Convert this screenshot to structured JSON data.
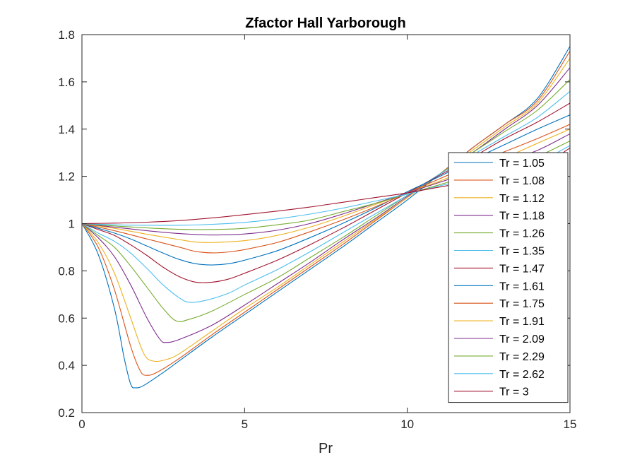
{
  "chart_data": {
    "type": "line",
    "title": "Zfactor Hall Yarborough",
    "xlabel": "Pr",
    "ylabel": "",
    "xlim": [
      0,
      15
    ],
    "ylim": [
      0.2,
      1.8
    ],
    "xticks": [
      "0",
      "5",
      "10",
      "15"
    ],
    "yticks": [
      "0.2",
      "0.4",
      "0.6",
      "0.8",
      "1",
      "1.2",
      "1.4",
      "1.6",
      "1.8"
    ],
    "grid": false,
    "legend_position": "right",
    "series": [
      {
        "name": "Tr = 1.05",
        "color": "#0072BD",
        "points": [
          [
            0,
            1
          ],
          [
            0.5,
            0.87
          ],
          [
            1,
            0.64
          ],
          [
            1.3,
            0.43
          ],
          [
            1.5,
            0.32
          ],
          [
            1.65,
            0.305
          ],
          [
            1.9,
            0.315
          ],
          [
            2.5,
            0.37
          ],
          [
            3,
            0.42
          ],
          [
            4,
            0.52
          ],
          [
            5,
            0.615
          ],
          [
            6,
            0.71
          ],
          [
            7,
            0.805
          ],
          [
            8,
            0.9
          ],
          [
            9,
            1
          ],
          [
            10,
            1.1
          ],
          [
            11,
            1.21
          ],
          [
            12,
            1.32
          ],
          [
            13,
            1.42
          ],
          [
            14,
            1.53
          ],
          [
            15,
            1.75
          ]
        ]
      },
      {
        "name": "Tr = 1.08",
        "color": "#D95319",
        "points": [
          [
            0,
            1
          ],
          [
            0.5,
            0.9
          ],
          [
            1,
            0.72
          ],
          [
            1.5,
            0.48
          ],
          [
            1.8,
            0.375
          ],
          [
            2,
            0.358
          ],
          [
            2.3,
            0.37
          ],
          [
            3,
            0.43
          ],
          [
            4,
            0.53
          ],
          [
            5,
            0.625
          ],
          [
            6,
            0.72
          ],
          [
            7,
            0.815
          ],
          [
            8,
            0.91
          ],
          [
            9,
            1.01
          ],
          [
            10,
            1.11
          ],
          [
            11,
            1.21
          ],
          [
            12,
            1.32
          ],
          [
            13,
            1.42
          ],
          [
            14,
            1.52
          ],
          [
            15,
            1.73
          ]
        ]
      },
      {
        "name": "Tr = 1.12",
        "color": "#EDB120",
        "points": [
          [
            0,
            1
          ],
          [
            0.5,
            0.92
          ],
          [
            1,
            0.79
          ],
          [
            1.5,
            0.6
          ],
          [
            1.9,
            0.45
          ],
          [
            2.2,
            0.418
          ],
          [
            2.6,
            0.425
          ],
          [
            3,
            0.45
          ],
          [
            4,
            0.545
          ],
          [
            5,
            0.64
          ],
          [
            6,
            0.73
          ],
          [
            7,
            0.825
          ],
          [
            8,
            0.92
          ],
          [
            9,
            1.015
          ],
          [
            10,
            1.11
          ],
          [
            11,
            1.21
          ],
          [
            12,
            1.31
          ],
          [
            13,
            1.41
          ],
          [
            14,
            1.51
          ],
          [
            15,
            1.7
          ]
        ]
      },
      {
        "name": "Tr = 1.18",
        "color": "#7E2F8E",
        "points": [
          [
            0,
            1
          ],
          [
            0.5,
            0.94
          ],
          [
            1,
            0.86
          ],
          [
            1.5,
            0.74
          ],
          [
            2,
            0.6
          ],
          [
            2.4,
            0.51
          ],
          [
            2.6,
            0.497
          ],
          [
            3,
            0.51
          ],
          [
            4,
            0.57
          ],
          [
            5,
            0.655
          ],
          [
            6,
            0.745
          ],
          [
            7,
            0.835
          ],
          [
            8,
            0.93
          ],
          [
            9,
            1.02
          ],
          [
            10,
            1.115
          ],
          [
            11,
            1.21
          ],
          [
            12,
            1.3
          ],
          [
            13,
            1.4
          ],
          [
            14,
            1.5
          ],
          [
            15,
            1.66
          ]
        ]
      },
      {
        "name": "Tr = 1.26",
        "color": "#77AC30",
        "points": [
          [
            0,
            1
          ],
          [
            0.5,
            0.95
          ],
          [
            1,
            0.9
          ],
          [
            1.5,
            0.82
          ],
          [
            2,
            0.73
          ],
          [
            2.5,
            0.64
          ],
          [
            2.9,
            0.588
          ],
          [
            3.3,
            0.595
          ],
          [
            4,
            0.63
          ],
          [
            5,
            0.7
          ],
          [
            6,
            0.77
          ],
          [
            7,
            0.855
          ],
          [
            8,
            0.94
          ],
          [
            9,
            1.03
          ],
          [
            10,
            1.12
          ],
          [
            11,
            1.21
          ],
          [
            12,
            1.3
          ],
          [
            13,
            1.39
          ],
          [
            14,
            1.48
          ],
          [
            15,
            1.61
          ]
        ]
      },
      {
        "name": "Tr = 1.35",
        "color": "#4DBEEE",
        "points": [
          [
            0,
            1
          ],
          [
            0.5,
            0.96
          ],
          [
            1,
            0.925
          ],
          [
            1.5,
            0.875
          ],
          [
            2,
            0.81
          ],
          [
            2.5,
            0.74
          ],
          [
            3,
            0.685
          ],
          [
            3.3,
            0.667
          ],
          [
            3.8,
            0.675
          ],
          [
            4.5,
            0.705
          ],
          [
            5,
            0.74
          ],
          [
            6,
            0.805
          ],
          [
            7,
            0.88
          ],
          [
            8,
            0.96
          ],
          [
            9,
            1.04
          ],
          [
            10,
            1.12
          ],
          [
            11,
            1.21
          ],
          [
            12,
            1.29
          ],
          [
            13,
            1.37
          ],
          [
            14,
            1.45
          ],
          [
            15,
            1.56
          ]
        ]
      },
      {
        "name": "Tr = 1.47",
        "color": "#A2142F",
        "points": [
          [
            0,
            1
          ],
          [
            0.5,
            0.975
          ],
          [
            1,
            0.95
          ],
          [
            1.5,
            0.91
          ],
          [
            2,
            0.865
          ],
          [
            2.5,
            0.815
          ],
          [
            3,
            0.775
          ],
          [
            3.5,
            0.752
          ],
          [
            4,
            0.752
          ],
          [
            4.5,
            0.765
          ],
          [
            5,
            0.79
          ],
          [
            6,
            0.845
          ],
          [
            7,
            0.91
          ],
          [
            8,
            0.98
          ],
          [
            9,
            1.055
          ],
          [
            10,
            1.13
          ],
          [
            11,
            1.205
          ],
          [
            12,
            1.28
          ],
          [
            13,
            1.36
          ],
          [
            14,
            1.43
          ],
          [
            15,
            1.51
          ]
        ]
      },
      {
        "name": "Tr = 1.61",
        "color": "#0072BD",
        "points": [
          [
            0,
            1
          ],
          [
            0.5,
            0.98
          ],
          [
            1,
            0.96
          ],
          [
            1.5,
            0.935
          ],
          [
            2,
            0.905
          ],
          [
            2.5,
            0.875
          ],
          [
            3,
            0.848
          ],
          [
            3.5,
            0.83
          ],
          [
            4,
            0.825
          ],
          [
            4.5,
            0.83
          ],
          [
            5,
            0.845
          ],
          [
            6,
            0.885
          ],
          [
            7,
            0.94
          ],
          [
            8,
            1
          ],
          [
            9,
            1.065
          ],
          [
            10,
            1.135
          ],
          [
            11,
            1.2
          ],
          [
            12,
            1.27
          ],
          [
            13,
            1.335
          ],
          [
            14,
            1.4
          ],
          [
            15,
            1.46
          ]
        ]
      },
      {
        "name": "Tr = 1.75",
        "color": "#D95319",
        "points": [
          [
            0,
            1
          ],
          [
            1,
            0.97
          ],
          [
            2,
            0.935
          ],
          [
            3,
            0.9
          ],
          [
            3.5,
            0.882
          ],
          [
            4,
            0.876
          ],
          [
            4.5,
            0.88
          ],
          [
            5,
            0.89
          ],
          [
            6,
            0.92
          ],
          [
            7,
            0.965
          ],
          [
            8,
            1.015
          ],
          [
            9,
            1.07
          ],
          [
            10,
            1.13
          ],
          [
            11,
            1.19
          ],
          [
            12,
            1.25
          ],
          [
            13,
            1.305
          ],
          [
            14,
            1.36
          ],
          [
            15,
            1.42
          ]
        ]
      },
      {
        "name": "Tr = 1.91",
        "color": "#EDB120",
        "points": [
          [
            0,
            1
          ],
          [
            1,
            0.98
          ],
          [
            2,
            0.955
          ],
          [
            3,
            0.932
          ],
          [
            3.5,
            0.922
          ],
          [
            4,
            0.92
          ],
          [
            5,
            0.928
          ],
          [
            6,
            0.95
          ],
          [
            7,
            0.985
          ],
          [
            8,
            1.03
          ],
          [
            9,
            1.08
          ],
          [
            10,
            1.13
          ],
          [
            11,
            1.18
          ],
          [
            12,
            1.235
          ],
          [
            13,
            1.28
          ],
          [
            14,
            1.34
          ],
          [
            15,
            1.4
          ]
        ]
      },
      {
        "name": "Tr = 2.09",
        "color": "#7E2F8E",
        "points": [
          [
            0,
            1
          ],
          [
            1,
            0.985
          ],
          [
            2,
            0.97
          ],
          [
            3,
            0.958
          ],
          [
            4,
            0.952
          ],
          [
            5,
            0.956
          ],
          [
            6,
            0.972
          ],
          [
            7,
            1
          ],
          [
            8,
            1.04
          ],
          [
            9,
            1.085
          ],
          [
            10,
            1.13
          ],
          [
            11,
            1.175
          ],
          [
            12,
            1.22
          ],
          [
            13,
            1.265
          ],
          [
            14,
            1.31
          ],
          [
            15,
            1.38
          ]
        ]
      },
      {
        "name": "Tr = 2.29",
        "color": "#77AC30",
        "points": [
          [
            0,
            1
          ],
          [
            1,
            0.99
          ],
          [
            2,
            0.982
          ],
          [
            3,
            0.976
          ],
          [
            4,
            0.975
          ],
          [
            5,
            0.98
          ],
          [
            6,
            0.995
          ],
          [
            7,
            1.015
          ],
          [
            8,
            1.05
          ],
          [
            9,
            1.085
          ],
          [
            10,
            1.125
          ],
          [
            11,
            1.165
          ],
          [
            12,
            1.205
          ],
          [
            13,
            1.245
          ],
          [
            14,
            1.285
          ],
          [
            15,
            1.35
          ]
        ]
      },
      {
        "name": "Tr = 2.62",
        "color": "#4DBEEE",
        "points": [
          [
            0,
            1
          ],
          [
            1,
            0.995
          ],
          [
            2,
            0.993
          ],
          [
            3,
            0.993
          ],
          [
            4,
            0.997
          ],
          [
            5,
            1.005
          ],
          [
            6,
            1.02
          ],
          [
            7,
            1.04
          ],
          [
            8,
            1.065
          ],
          [
            9,
            1.095
          ],
          [
            10,
            1.125
          ],
          [
            11,
            1.16
          ],
          [
            12,
            1.19
          ],
          [
            13,
            1.225
          ],
          [
            14,
            1.26
          ],
          [
            15,
            1.33
          ]
        ]
      },
      {
        "name": "Tr = 3",
        "color": "#A2142F",
        "points": [
          [
            0,
            1
          ],
          [
            1,
            1.002
          ],
          [
            2,
            1.006
          ],
          [
            3,
            1.013
          ],
          [
            4,
            1.024
          ],
          [
            5,
            1.038
          ],
          [
            6,
            1.053
          ],
          [
            7,
            1.07
          ],
          [
            8,
            1.09
          ],
          [
            9,
            1.11
          ],
          [
            10,
            1.13
          ],
          [
            11,
            1.155
          ],
          [
            12,
            1.18
          ],
          [
            13,
            1.205
          ],
          [
            14,
            1.235
          ],
          [
            15,
            1.32
          ]
        ]
      }
    ]
  }
}
